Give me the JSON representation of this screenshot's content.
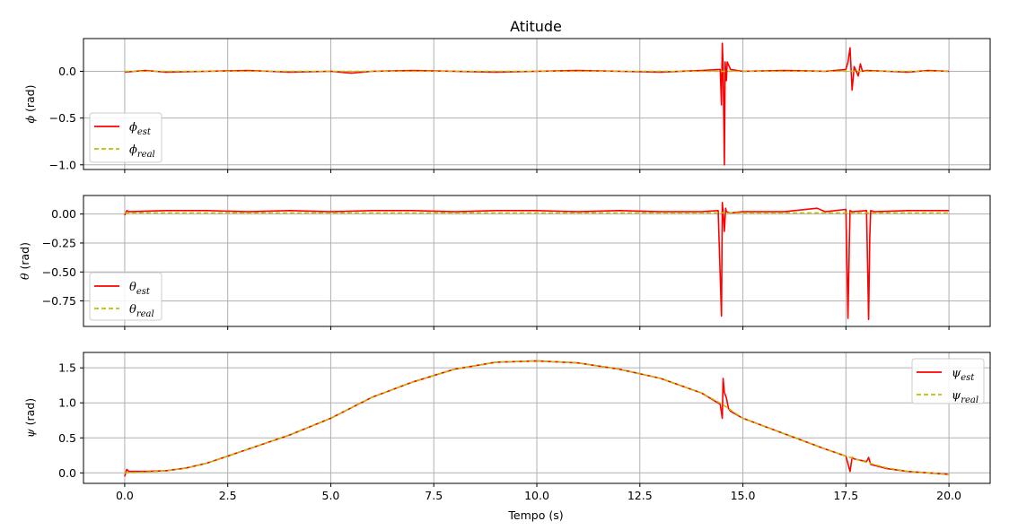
{
  "figure_title": "Atitude",
  "chart_data": [
    {
      "type": "line",
      "ylabel_symbol": "ϕ",
      "ylabel_unit": " (rad)",
      "xlim": [
        -1.0,
        21.0
      ],
      "ylim": [
        -1.05,
        0.35
      ],
      "yticks": [
        0.0,
        -0.5,
        -1.0
      ],
      "ytick_labels": [
        "0.0",
        "−0.5",
        "−1.0"
      ],
      "grid": true,
      "legend": "lower-left",
      "series": [
        {
          "legend_symbol": "ϕ",
          "legend_sub": "est",
          "color": "#ff0000",
          "style": "solid",
          "x": [
            0.0,
            0.5,
            1.0,
            2.0,
            3.0,
            4.0,
            5.0,
            5.5,
            6.0,
            7.0,
            8.0,
            9.0,
            10.0,
            11.0,
            12.0,
            13.0,
            14.0,
            14.45,
            14.48,
            14.5,
            14.52,
            14.55,
            14.57,
            14.6,
            14.62,
            14.7,
            15.0,
            16.0,
            17.0,
            17.5,
            17.55,
            17.6,
            17.65,
            17.7,
            17.8,
            17.85,
            17.9,
            18.0,
            18.5,
            19.0,
            19.5,
            20.0
          ],
          "y": [
            -0.01,
            0.01,
            -0.01,
            0.0,
            0.01,
            -0.01,
            0.0,
            -0.02,
            0.0,
            0.01,
            0.0,
            -0.01,
            0.0,
            0.01,
            0.0,
            -0.01,
            0.01,
            0.02,
            -0.36,
            0.3,
            0.05,
            -1.0,
            0.1,
            -0.1,
            0.1,
            0.02,
            0.0,
            0.01,
            0.0,
            0.02,
            0.1,
            0.25,
            -0.2,
            0.05,
            -0.05,
            0.08,
            0.0,
            0.01,
            0.0,
            -0.01,
            0.01,
            0.0
          ]
        },
        {
          "legend_symbol": "ϕ",
          "legend_sub": "real",
          "color": "#bfbf00",
          "style": "dashed",
          "x": [
            0.0,
            20.0
          ],
          "y": [
            0.0,
            0.0
          ]
        }
      ]
    },
    {
      "type": "line",
      "ylabel_symbol": "θ",
      "ylabel_unit": " (rad)",
      "xlim": [
        -1.0,
        21.0
      ],
      "ylim": [
        -0.97,
        0.16
      ],
      "yticks": [
        0.0,
        -0.25,
        -0.5,
        -0.75
      ],
      "ytick_labels": [
        "0.00",
        "−0.25",
        "−0.50",
        "−0.75"
      ],
      "grid": true,
      "legend": "lower-left",
      "series": [
        {
          "legend_symbol": "θ",
          "legend_sub": "est",
          "color": "#ff0000",
          "style": "solid",
          "x": [
            0.0,
            0.05,
            0.1,
            1.0,
            2.0,
            3.0,
            4.0,
            5.0,
            6.0,
            7.0,
            8.0,
            9.0,
            10.0,
            11.0,
            12.0,
            13.0,
            14.0,
            14.4,
            14.48,
            14.5,
            14.52,
            14.55,
            14.58,
            14.6,
            14.7,
            15.0,
            16.0,
            16.8,
            17.0,
            17.5,
            17.55,
            17.58,
            17.6,
            17.65,
            18.0,
            18.05,
            18.08,
            18.1,
            18.2,
            19.0,
            20.0
          ],
          "y": [
            -0.01,
            0.03,
            0.02,
            0.03,
            0.03,
            0.02,
            0.03,
            0.02,
            0.03,
            0.03,
            0.02,
            0.03,
            0.03,
            0.02,
            0.03,
            0.02,
            0.02,
            0.03,
            -0.88,
            0.1,
            0.02,
            -0.15,
            0.05,
            0.02,
            0.01,
            0.02,
            0.02,
            0.05,
            0.02,
            0.04,
            -0.9,
            -0.3,
            0.03,
            0.02,
            0.03,
            -0.91,
            -0.2,
            0.03,
            0.02,
            0.03,
            0.03
          ]
        },
        {
          "legend_symbol": "θ",
          "legend_sub": "real",
          "color": "#bfbf00",
          "style": "dashed",
          "x": [
            0.0,
            20.0
          ],
          "y": [
            0.01,
            0.01
          ]
        }
      ]
    },
    {
      "type": "line",
      "xlabel": "Tempo (s)",
      "ylabel_symbol": "ψ",
      "ylabel_unit": " (rad)",
      "xlim": [
        -1.0,
        21.0
      ],
      "ylim": [
        -0.15,
        1.72
      ],
      "yticks": [
        0.0,
        0.5,
        1.0,
        1.5
      ],
      "ytick_labels": [
        "0.0",
        "0.5",
        "1.0",
        "1.5"
      ],
      "xticks": [
        0.0,
        2.5,
        5.0,
        7.5,
        10.0,
        12.5,
        15.0,
        17.5,
        20.0
      ],
      "xtick_labels": [
        "0.0",
        "2.5",
        "5.0",
        "7.5",
        "10.0",
        "12.5",
        "15.0",
        "17.5",
        "20.0"
      ],
      "grid": true,
      "legend": "upper-right",
      "series": [
        {
          "legend_symbol": "ψ",
          "legend_sub": "est",
          "color": "#ff0000",
          "style": "solid",
          "x": [
            0.0,
            0.05,
            0.1,
            0.5,
            1.0,
            1.5,
            2.0,
            2.5,
            3.0,
            4.0,
            5.0,
            6.0,
            7.0,
            8.0,
            9.0,
            10.0,
            11.0,
            12.0,
            13.0,
            14.0,
            14.45,
            14.5,
            14.52,
            14.55,
            14.6,
            14.65,
            14.7,
            15.0,
            16.0,
            17.0,
            17.5,
            17.6,
            17.65,
            17.7,
            18.0,
            18.05,
            18.1,
            18.5,
            19.0,
            19.5,
            20.0
          ],
          "y": [
            -0.05,
            0.05,
            0.02,
            0.02,
            0.03,
            0.07,
            0.14,
            0.24,
            0.34,
            0.54,
            0.78,
            1.08,
            1.3,
            1.48,
            1.58,
            1.6,
            1.57,
            1.48,
            1.35,
            1.14,
            0.98,
            0.78,
            1.35,
            1.15,
            1.07,
            0.92,
            0.88,
            0.78,
            0.56,
            0.34,
            0.24,
            0.02,
            0.22,
            0.2,
            0.16,
            0.22,
            0.12,
            0.06,
            0.02,
            0.0,
            -0.02
          ]
        },
        {
          "legend_symbol": "ψ",
          "legend_sub": "real",
          "color": "#bfbf00",
          "style": "dashed",
          "x": [
            0.0,
            0.5,
            1.0,
            1.5,
            2.0,
            2.5,
            3.0,
            4.0,
            5.0,
            6.0,
            7.0,
            8.0,
            9.0,
            10.0,
            11.0,
            12.0,
            13.0,
            14.0,
            14.5,
            15.0,
            16.0,
            17.0,
            17.5,
            18.0,
            18.5,
            19.0,
            19.5,
            20.0
          ],
          "y": [
            0.0,
            0.01,
            0.03,
            0.07,
            0.14,
            0.24,
            0.34,
            0.54,
            0.78,
            1.08,
            1.3,
            1.48,
            1.58,
            1.6,
            1.57,
            1.48,
            1.35,
            1.14,
            0.98,
            0.78,
            0.56,
            0.34,
            0.24,
            0.15,
            0.07,
            0.02,
            0.0,
            -0.02
          ]
        }
      ]
    }
  ]
}
